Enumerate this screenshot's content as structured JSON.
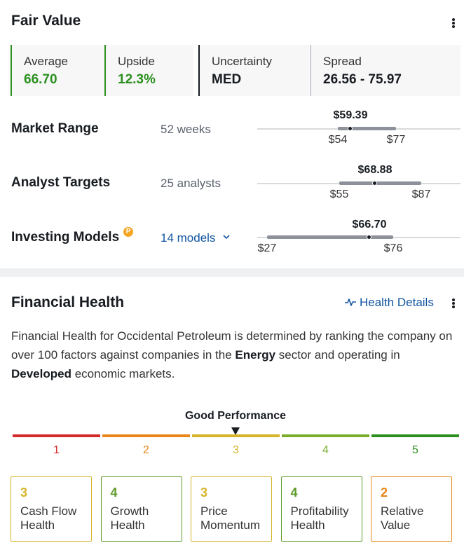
{
  "fair_value": {
    "title": "Fair Value",
    "metrics": [
      {
        "label": "Average",
        "value": "66.70"
      },
      {
        "label": "Upside",
        "value": "12.3%"
      },
      {
        "label": "Uncertainty",
        "value": "MED"
      },
      {
        "label": "Spread",
        "value": "26.56 - 75.97"
      }
    ],
    "rows": [
      {
        "label": "Market Range",
        "sub": "52 weeks",
        "current": "$59.39",
        "low": "$54",
        "high": "$77"
      },
      {
        "label": "Analyst Targets",
        "sub": "25 analysts",
        "current": "$68.88",
        "low": "$55",
        "high": "$87"
      },
      {
        "label": "Investing Models",
        "sub": "14 models",
        "current": "$66.70",
        "low": "$27",
        "high": "$76",
        "badge_icon": "pro-badge-icon"
      }
    ]
  },
  "financial_health": {
    "title": "Financial Health",
    "details_link": "Health Details",
    "description": {
      "part1": "Financial Health for Occidental Petroleum is determined by ranking the company on over 100 factors against companies in the ",
      "bold1": "Energy",
      "part2": " sector and operating in ",
      "bold2": "Developed",
      "part3": " economic markets."
    },
    "performance_label": "Good Performance",
    "performance_score": 3,
    "scale": [
      {
        "num": "1",
        "color": "#d32a2a",
        "text_color": "#d32a2a"
      },
      {
        "num": "2",
        "color": "#e8861a",
        "text_color": "#e8861a"
      },
      {
        "num": "3",
        "color": "#d6b428",
        "text_color": "#d6b428"
      },
      {
        "num": "4",
        "color": "#7aad2c",
        "text_color": "#7aad2c"
      },
      {
        "num": "5",
        "color": "#2b8f1e",
        "text_color": "#2b8f1e"
      }
    ],
    "categories": [
      {
        "score": "3",
        "name": "Cash Flow Health",
        "color": "#d6b428"
      },
      {
        "score": "4",
        "name": "Growth Health",
        "color": "#5e9c2a"
      },
      {
        "score": "3",
        "name": "Price Momentum",
        "color": "#d6b428"
      },
      {
        "score": "4",
        "name": "Profitability Health",
        "color": "#5e9c2a"
      },
      {
        "score": "2",
        "name": "Relative Value",
        "color": "#e8861a"
      }
    ]
  },
  "colors": {
    "accent_green": "#2b8f1e",
    "link_blue": "#1256a0"
  }
}
